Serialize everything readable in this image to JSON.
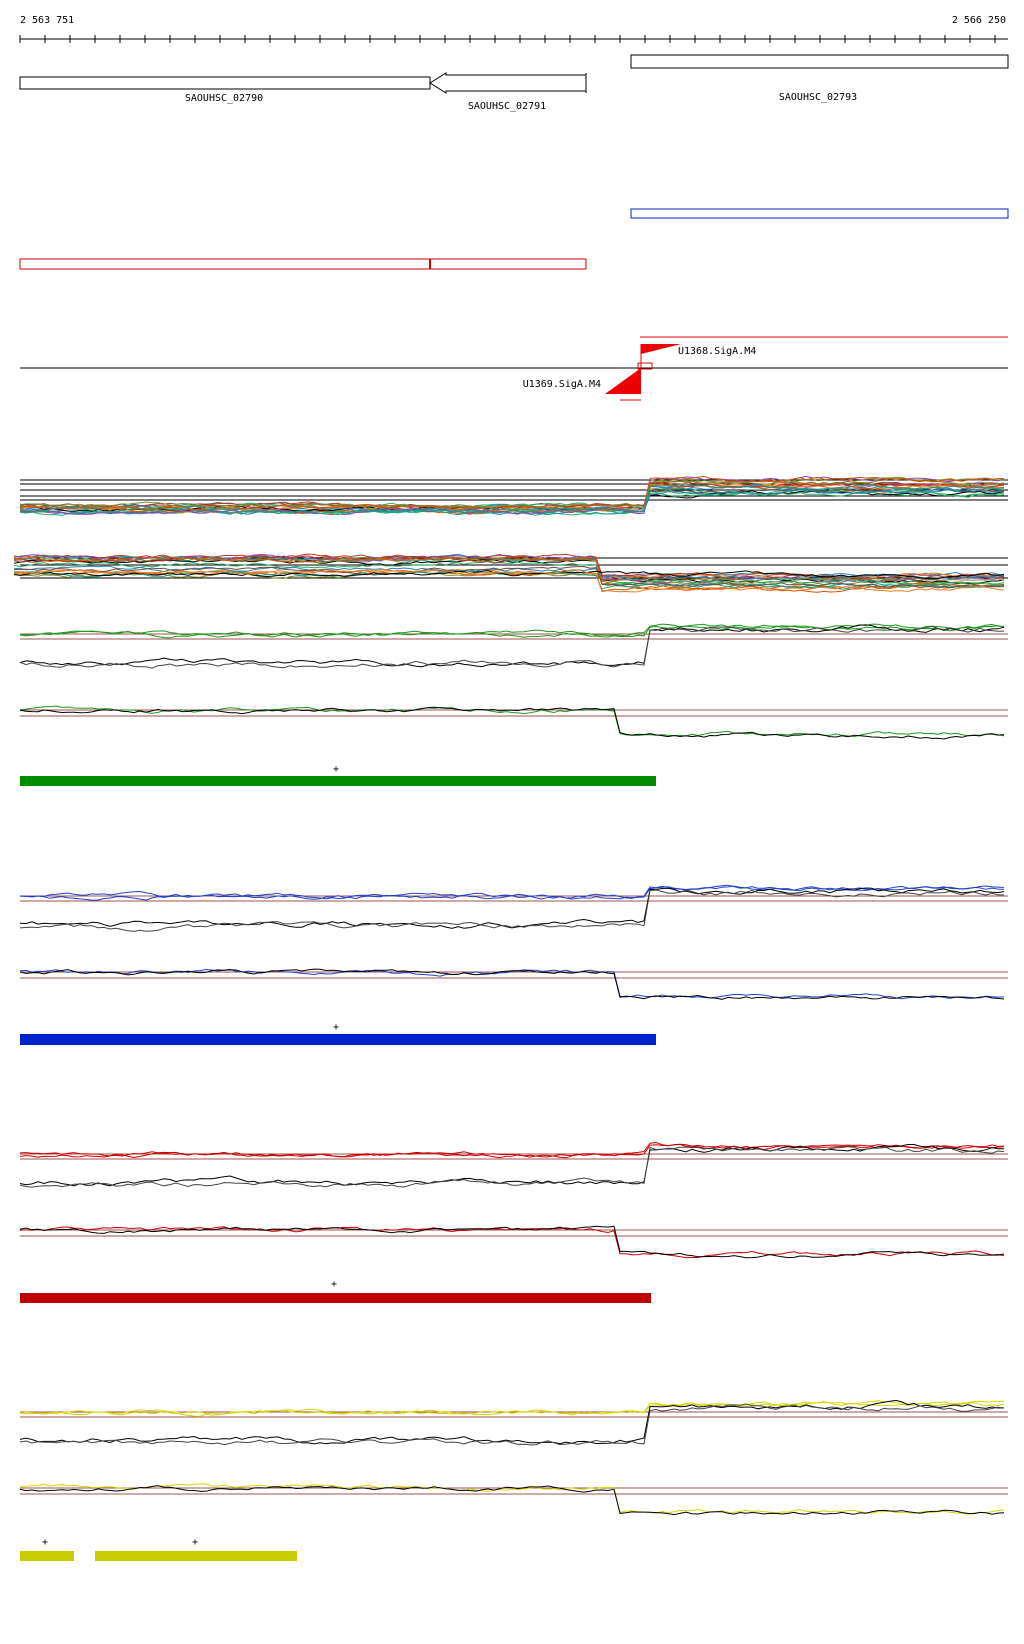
{
  "ruler": {
    "start": "2 563 751",
    "end": "2 566 250"
  },
  "genes": [
    {
      "label": "SAOUHSC_02790"
    },
    {
      "label": "SAOUHSC_02791"
    },
    {
      "label": "SAOUHSC_02793"
    }
  ],
  "promoters": [
    {
      "label": "U1368.SigA.M4"
    },
    {
      "label": "U1369.SigA.M4"
    }
  ],
  "strand_markers": [
    "+",
    "+",
    "+",
    "+",
    "+"
  ]
}
